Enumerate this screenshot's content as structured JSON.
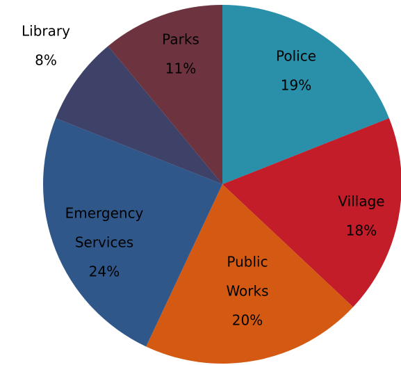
{
  "chart_data": {
    "type": "pie",
    "title": "",
    "start_angle": "12 o'clock",
    "direction": "clockwise",
    "legend": "none",
    "slices": [
      {
        "name": "Police",
        "label_lines": [
          "Police"
        ],
        "value": 19,
        "value_label": "19%",
        "color": "#2a8fa9",
        "label_color": "#000000"
      },
      {
        "name": "Village",
        "label_lines": [
          "Village"
        ],
        "value": 18,
        "value_label": "18%",
        "color": "#c21d28",
        "label_color": "#000000"
      },
      {
        "name": "Public Works",
        "label_lines": [
          "Public",
          "Works"
        ],
        "value": 20,
        "value_label": "20%",
        "color": "#d45a14",
        "label_color": "#000000"
      },
      {
        "name": "Emergency Services",
        "label_lines": [
          "Emergency",
          "Services"
        ],
        "value": 24,
        "value_label": "24%",
        "color": "#30578a",
        "label_color": "#000000"
      },
      {
        "name": "Library",
        "label_lines": [
          "Library"
        ],
        "value": 8,
        "value_label": "8%",
        "color": "#3f4268",
        "label_color": "#000000"
      },
      {
        "name": "Parks",
        "label_lines": [
          "Parks"
        ],
        "value": 11,
        "value_label": "11%",
        "color": "#6d3440",
        "label_color": "#000000"
      }
    ]
  }
}
